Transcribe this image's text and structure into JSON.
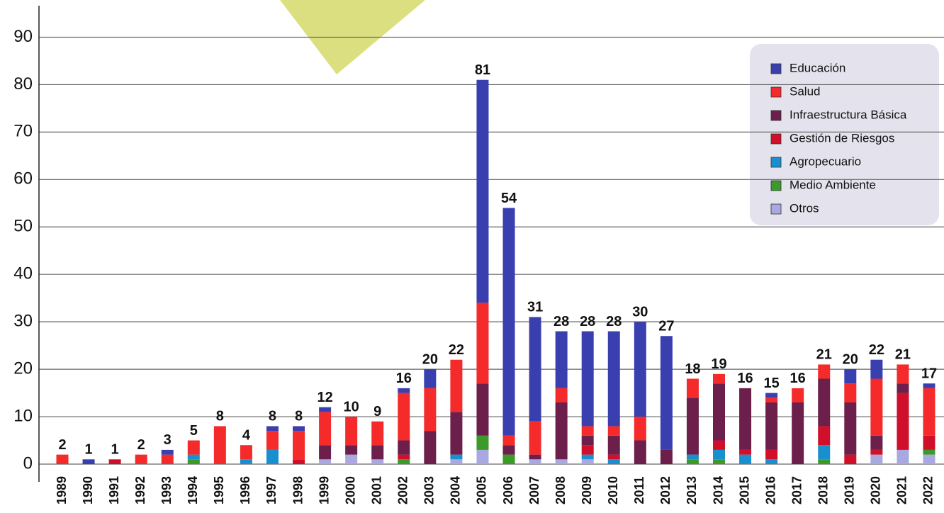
{
  "chart_data": {
    "type": "stacked_bar",
    "categories": [
      "1989",
      "1990",
      "1991",
      "1992",
      "1993",
      "1994",
      "1995",
      "1996",
      "1997",
      "1998",
      "1999",
      "2000",
      "2001",
      "2002",
      "2003",
      "2004",
      "2005",
      "2006",
      "2007",
      "2008",
      "2009",
      "2010",
      "2011",
      "2012",
      "2013",
      "2014",
      "2015",
      "2016",
      "2017",
      "2018",
      "2019",
      "2020",
      "2021",
      "2022"
    ],
    "series": [
      {
        "name": "Educación",
        "color": "#3a3fb0",
        "values": [
          0,
          1,
          0,
          0,
          1,
          0,
          0,
          0,
          1,
          1,
          1,
          0,
          0,
          1,
          4,
          0,
          47,
          48,
          22,
          12,
          20,
          20,
          20,
          24,
          0,
          0,
          0,
          1,
          0,
          0,
          3,
          4,
          0,
          1
        ]
      },
      {
        "name": "Salud",
        "color": "#f52a2a",
        "values": [
          2,
          0,
          0,
          2,
          2,
          3,
          8,
          3,
          4,
          6,
          7,
          6,
          5,
          10,
          9,
          11,
          17,
          2,
          7,
          3,
          2,
          2,
          5,
          0,
          4,
          2,
          0,
          1,
          3,
          3,
          4,
          12,
          4,
          10
        ]
      },
      {
        "name": "Infraestructura Básica",
        "color": "#6b1f4a",
        "values": [
          0,
          0,
          0,
          0,
          0,
          0,
          0,
          0,
          0,
          0,
          3,
          2,
          3,
          3,
          7,
          9,
          11,
          2,
          1,
          12,
          2,
          4,
          5,
          3,
          12,
          12,
          13,
          10,
          13,
          10,
          11,
          3,
          2,
          0
        ]
      },
      {
        "name": "Gestión de Riesgos",
        "color": "#d0102a",
        "values": [
          0,
          0,
          1,
          0,
          0,
          0,
          0,
          0,
          0,
          1,
          0,
          0,
          0,
          1,
          0,
          0,
          0,
          0,
          0,
          0,
          2,
          1,
          0,
          0,
          0,
          2,
          1,
          2,
          0,
          4,
          2,
          1,
          12,
          3
        ]
      },
      {
        "name": "Agropecuario",
        "color": "#1a8fcf",
        "values": [
          0,
          0,
          0,
          0,
          0,
          1,
          0,
          1,
          3,
          0,
          0,
          0,
          0,
          0,
          0,
          1,
          0,
          0,
          0,
          0,
          1,
          1,
          0,
          0,
          1,
          2,
          2,
          1,
          0,
          3,
          0,
          0,
          0,
          0
        ]
      },
      {
        "name": "Medio Ambiente",
        "color": "#3a9a2a",
        "values": [
          0,
          0,
          0,
          0,
          0,
          1,
          0,
          0,
          0,
          0,
          0,
          0,
          0,
          1,
          0,
          0,
          3,
          2,
          0,
          0,
          0,
          0,
          0,
          0,
          1,
          1,
          0,
          0,
          0,
          1,
          0,
          0,
          0,
          1
        ]
      },
      {
        "name": "Otros",
        "color": "#a9a8e0",
        "values": [
          0,
          0,
          0,
          0,
          0,
          0,
          0,
          0,
          0,
          0,
          1,
          2,
          1,
          0,
          0,
          1,
          3,
          0,
          1,
          1,
          1,
          0,
          0,
          0,
          0,
          0,
          0,
          0,
          0,
          0,
          0,
          2,
          3,
          2
        ]
      }
    ],
    "totals": [
      2,
      1,
      1,
      2,
      3,
      5,
      8,
      4,
      8,
      8,
      12,
      10,
      9,
      16,
      20,
      22,
      81,
      54,
      31,
      28,
      28,
      28,
      30,
      27,
      18,
      19,
      16,
      15,
      16,
      21,
      20,
      22,
      21,
      17
    ],
    "ylim": [
      0,
      95
    ],
    "yticks": [
      0,
      10,
      20,
      30,
      40,
      50,
      60,
      70,
      80,
      90
    ],
    "grid": true
  }
}
